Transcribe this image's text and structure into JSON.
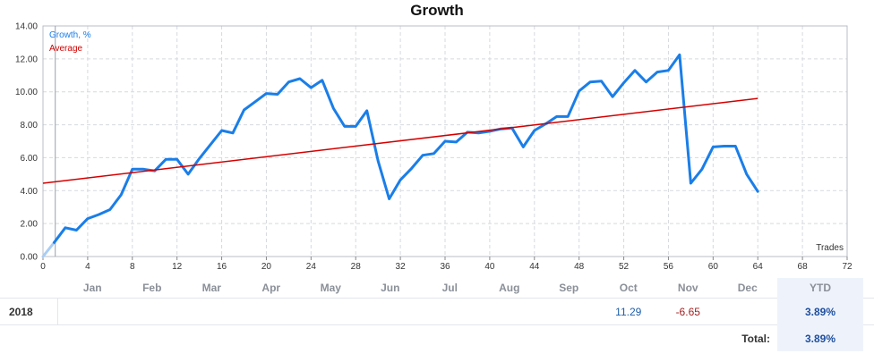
{
  "chart_data": {
    "type": "line",
    "title": "Growth",
    "xlabel": "Trades",
    "ylabel": "",
    "xlim": [
      0,
      72
    ],
    "ylim": [
      0,
      14
    ],
    "x_ticks": [
      0,
      4,
      8,
      12,
      16,
      20,
      24,
      28,
      32,
      36,
      40,
      44,
      48,
      52,
      56,
      60,
      64,
      68,
      72
    ],
    "y_ticks": [
      "0.00",
      "2.00",
      "4.00",
      "6.00",
      "8.00",
      "10.00",
      "12.00",
      "14.00"
    ],
    "grid": true,
    "legend_position": "top-left",
    "series": [
      {
        "name": "Growth, %",
        "color": "#1a7ee8",
        "x": [
          0,
          1,
          2,
          3,
          4,
          5,
          6,
          7,
          8,
          9,
          10,
          11,
          12,
          13,
          14,
          15,
          16,
          17,
          18,
          19,
          20,
          21,
          22,
          23,
          24,
          25,
          26,
          27,
          28,
          29,
          30,
          31,
          32,
          33,
          34,
          35,
          36,
          37,
          38,
          39,
          40,
          41,
          42,
          43,
          44,
          45,
          46,
          47,
          48,
          49,
          50,
          51,
          52,
          53,
          54,
          55,
          56,
          57,
          58,
          59,
          60,
          61,
          62,
          63,
          64
        ],
        "y": [
          0.0,
          0.85,
          1.75,
          1.6,
          2.3,
          2.55,
          2.85,
          3.75,
          5.3,
          5.3,
          5.2,
          5.9,
          5.9,
          5.0,
          5.95,
          6.8,
          7.65,
          7.5,
          8.9,
          9.4,
          9.9,
          9.85,
          10.6,
          10.8,
          10.25,
          10.7,
          9.0,
          7.9,
          7.9,
          8.85,
          5.8,
          3.5,
          4.65,
          5.35,
          6.15,
          6.25,
          7.0,
          6.95,
          7.55,
          7.5,
          7.6,
          7.75,
          7.8,
          6.65,
          7.65,
          8.05,
          8.5,
          8.5,
          10.05,
          10.6,
          10.65,
          9.7,
          10.55,
          11.3,
          10.6,
          11.2,
          11.3,
          12.25,
          4.45,
          5.3,
          6.65,
          6.7,
          6.7,
          5.0,
          3.95
        ]
      },
      {
        "name": "Average",
        "color": "#d40000",
        "x": [
          0,
          64
        ],
        "y": [
          4.45,
          9.6
        ]
      }
    ]
  },
  "table": {
    "months": [
      "Jan",
      "Feb",
      "Mar",
      "Apr",
      "May",
      "Jun",
      "Jul",
      "Aug",
      "Sep",
      "Oct",
      "Nov",
      "Dec"
    ],
    "ytd_header": "YTD",
    "rows": [
      {
        "year": "2018",
        "values": [
          "",
          "",
          "",
          "",
          "",
          "",
          "",
          "",
          "",
          "11.29",
          "-6.65",
          ""
        ],
        "ytd": "3.89%"
      }
    ],
    "total_label": "Total:",
    "total_value": "3.89%"
  }
}
